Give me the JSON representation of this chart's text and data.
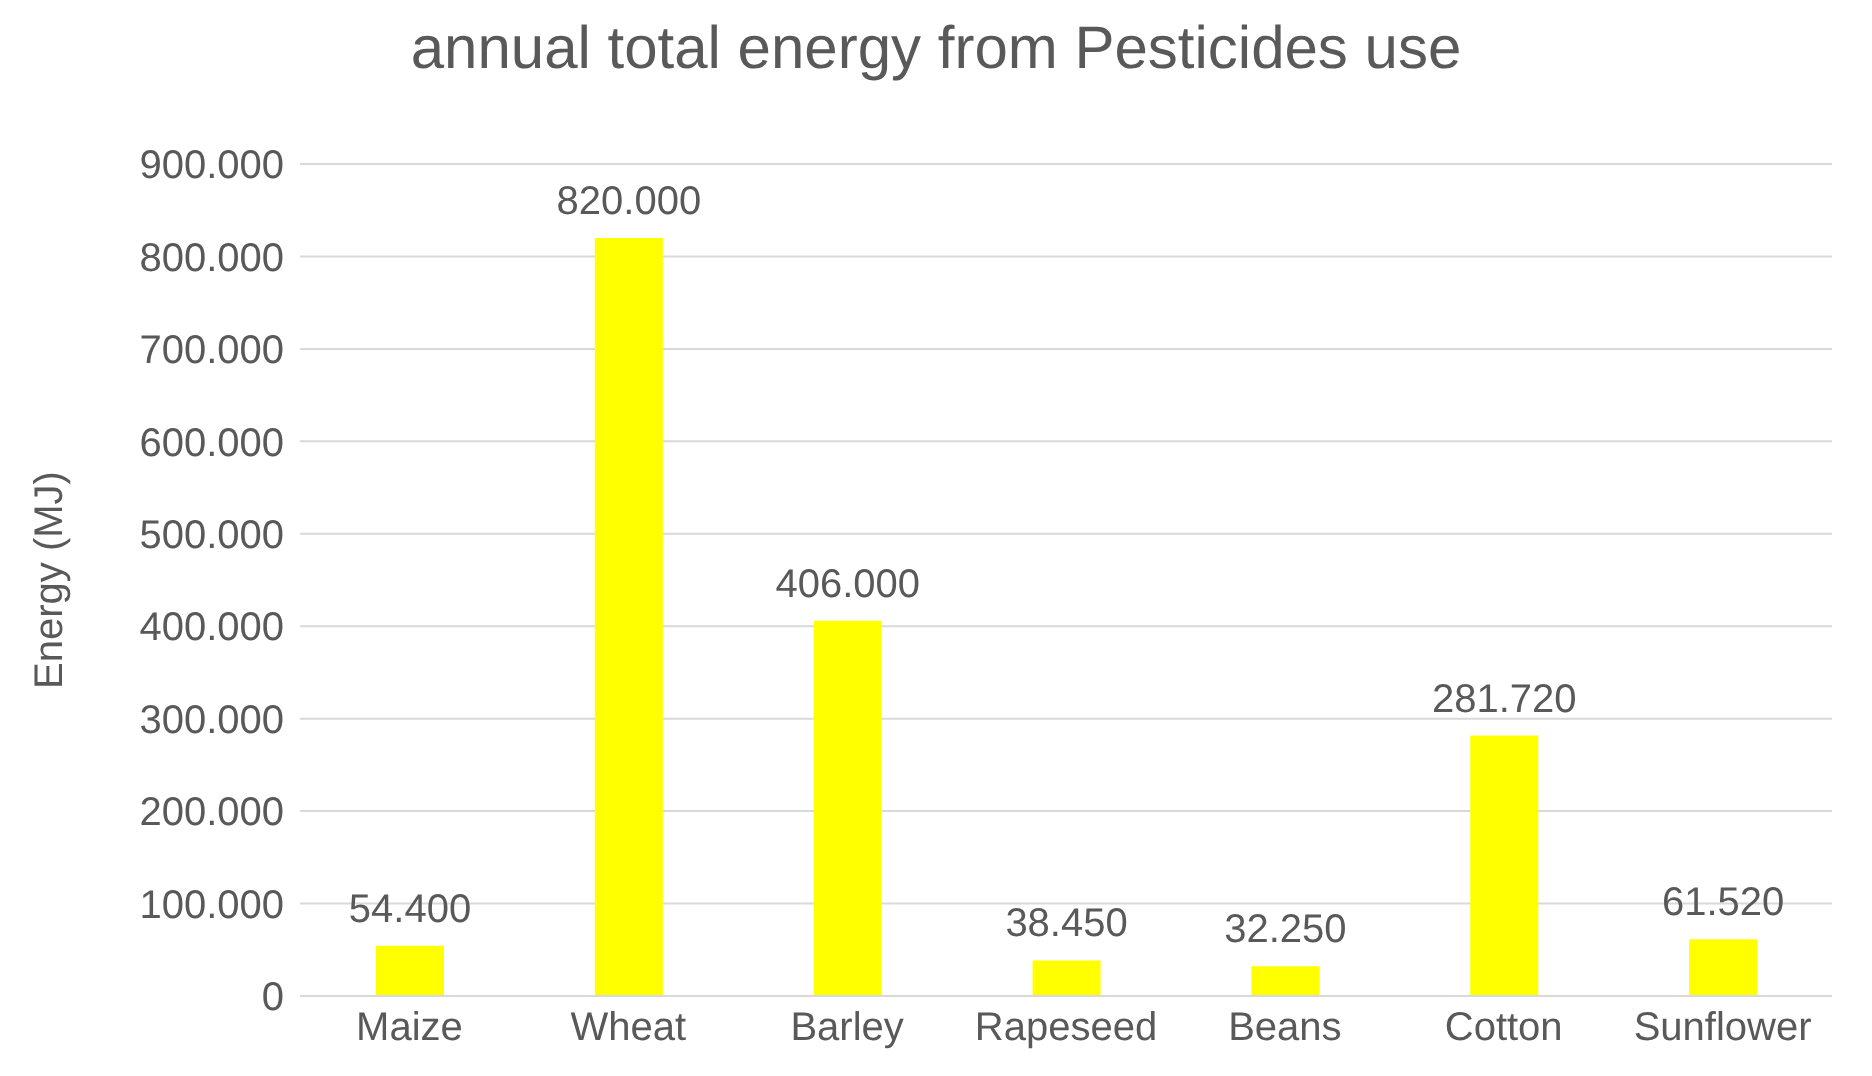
{
  "chart_data": {
    "type": "bar",
    "title": "annual total energy from Pesticides use",
    "ylabel": "Energy (MJ)",
    "categories": [
      "Maize",
      "Wheat",
      "Barley",
      "Rapeseed",
      "Beans",
      "Cotton",
      "Sunflower"
    ],
    "values": [
      54400,
      820000,
      406000,
      38450,
      32250,
      281720,
      61520
    ],
    "value_labels": [
      "54.400",
      "820.000",
      "406.000",
      "38.450",
      "32.250",
      "281.720",
      "61.520"
    ],
    "color": "#ffff00",
    "ylim": [
      0,
      900000
    ],
    "yticks": [
      0,
      {
        "value": 100000,
        "label": "100.000"
      },
      {
        "value": 200000,
        "label": "200.000"
      },
      {
        "value": 300000,
        "label": "300.000"
      },
      {
        "value": 400000,
        "label": "400.000"
      },
      {
        "value": 500000,
        "label": "500.000"
      },
      {
        "value": 600000,
        "label": "600.000"
      },
      {
        "value": 700000,
        "label": "700.000"
      },
      {
        "value": 800000,
        "label": "800.000"
      },
      {
        "value": 900000,
        "label": "900.000"
      }
    ],
    "grid": "y"
  }
}
